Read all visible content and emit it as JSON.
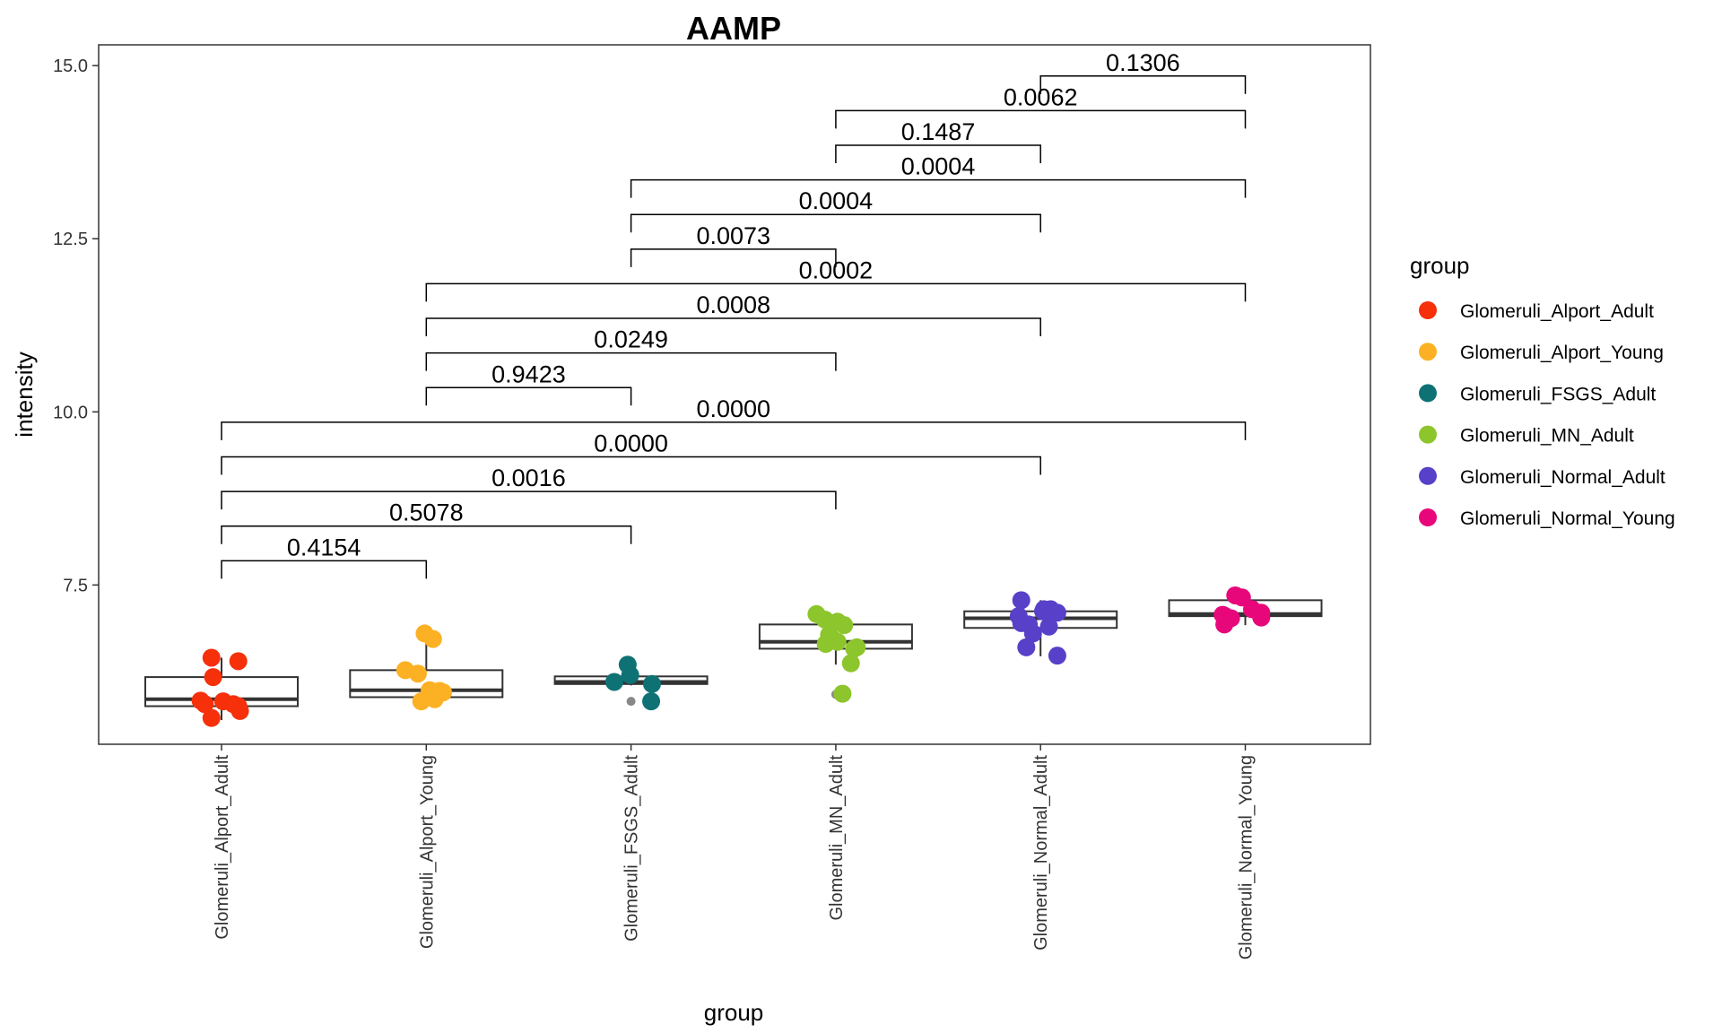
{
  "chart_data": {
    "type": "box",
    "title": "AAMP",
    "xlabel": "group",
    "ylabel": "intensity",
    "ylim": [
      5.2,
      15.3
    ],
    "yticks": [
      7.5,
      10.0,
      12.5,
      15.0
    ],
    "ytick_labels": [
      "7.5",
      "10.0",
      "12.5",
      "15.0"
    ],
    "grid": false,
    "legend": {
      "title": "group",
      "placement": "right"
    },
    "categories": [
      "Glomeruli_Alport_Adult",
      "Glomeruli_Alport_Young",
      "Glomeruli_FSGS_Adult",
      "Glomeruli_MN_Adult",
      "Glomeruli_Normal_Adult",
      "Glomeruli_Normal_Young"
    ],
    "colors": [
      "#F5300B",
      "#FBB123",
      "#0E7275",
      "#8DC52C",
      "#5840C8",
      "#E8077A"
    ],
    "boxes": [
      {
        "q1": 5.75,
        "median": 5.85,
        "q3": 6.17,
        "whisker_low": 5.55,
        "whisker_high": 6.45,
        "outliers": []
      },
      {
        "q1": 5.88,
        "median": 5.98,
        "q3": 6.27,
        "whisker_low": 5.8,
        "whisker_high": 6.8,
        "outliers": []
      },
      {
        "q1": 6.07,
        "median": 6.1,
        "q3": 6.18,
        "whisker_low": 6.05,
        "whisker_high": 6.35,
        "outliers": [
          5.82
        ]
      },
      {
        "q1": 6.58,
        "median": 6.68,
        "q3": 6.93,
        "whisker_low": 6.35,
        "whisker_high": 7.08,
        "outliers": [
          5.92
        ]
      },
      {
        "q1": 6.88,
        "median": 7.02,
        "q3": 7.12,
        "whisker_low": 6.47,
        "whisker_high": 7.28,
        "outliers": []
      },
      {
        "q1": 7.05,
        "median": 7.08,
        "q3": 7.28,
        "whisker_low": 6.92,
        "whisker_high": 7.35,
        "outliers": []
      }
    ],
    "points": [
      [
        6.45,
        6.4,
        6.17,
        5.83,
        5.78,
        5.82,
        5.78,
        5.75,
        5.68,
        5.58
      ],
      [
        6.8,
        6.72,
        6.27,
        6.22,
        5.98,
        5.97,
        5.95,
        5.85,
        5.82
      ],
      [
        6.35,
        6.2,
        6.1,
        6.07,
        5.82
      ],
      [
        7.08,
        7.0,
        6.97,
        6.92,
        6.78,
        6.72,
        6.68,
        6.65,
        6.6,
        6.58,
        6.37,
        5.93
      ],
      [
        7.28,
        7.15,
        7.15,
        7.12,
        7.1,
        7.05,
        6.95,
        6.93,
        6.9,
        6.8,
        6.6,
        6.48
      ],
      [
        7.35,
        7.32,
        7.15,
        7.1,
        7.07,
        7.05,
        7.03,
        7.02,
        6.93
      ]
    ],
    "point_jitter": [
      [
        -0.12,
        0.2,
        -0.1,
        -0.25,
        -0.2,
        0.02,
        0.14,
        0.2,
        0.22,
        -0.12
      ],
      [
        -0.02,
        0.08,
        -0.25,
        -0.1,
        0.04,
        0.16,
        0.2,
        0.1,
        -0.06
      ],
      [
        -0.04,
        -0.01,
        -0.2,
        0.25,
        0.24
      ],
      [
        -0.23,
        -0.13,
        0.02,
        0.1,
        -0.08,
        -0.04,
        0.02,
        -0.12,
        0.25,
        0.22,
        0.18,
        0.08
      ],
      [
        -0.23,
        0.04,
        0.12,
        0.03,
        0.2,
        -0.26,
        -0.23,
        -0.14,
        0.1,
        -0.09,
        -0.17,
        0.2
      ],
      [
        -0.12,
        -0.04,
        0.08,
        0.19,
        -0.27,
        -0.24,
        0.19,
        -0.17,
        -0.25
      ]
    ],
    "comparisons": [
      {
        "from": 0,
        "to": 1,
        "y": 7.85,
        "p": "0.4154"
      },
      {
        "from": 0,
        "to": 2,
        "y": 8.35,
        "p": "0.5078"
      },
      {
        "from": 0,
        "to": 3,
        "y": 8.85,
        "p": "0.0016"
      },
      {
        "from": 0,
        "to": 4,
        "y": 9.35,
        "p": "0.0000"
      },
      {
        "from": 0,
        "to": 5,
        "y": 9.85,
        "p": "0.0000"
      },
      {
        "from": 1,
        "to": 2,
        "y": 10.35,
        "p": "0.9423"
      },
      {
        "from": 1,
        "to": 3,
        "y": 10.85,
        "p": "0.0249"
      },
      {
        "from": 1,
        "to": 4,
        "y": 11.35,
        "p": "0.0008"
      },
      {
        "from": 1,
        "to": 5,
        "y": 11.85,
        "p": "0.0002"
      },
      {
        "from": 2,
        "to": 3,
        "y": 12.35,
        "p": "0.0073"
      },
      {
        "from": 2,
        "to": 4,
        "y": 12.85,
        "p": "0.0004"
      },
      {
        "from": 2,
        "to": 5,
        "y": 13.35,
        "p": "0.0004"
      },
      {
        "from": 3,
        "to": 4,
        "y": 13.85,
        "p": "0.1487"
      },
      {
        "from": 3,
        "to": 5,
        "y": 14.35,
        "p": "0.0062"
      },
      {
        "from": 4,
        "to": 5,
        "y": 14.85,
        "p": "0.1306"
      }
    ]
  }
}
